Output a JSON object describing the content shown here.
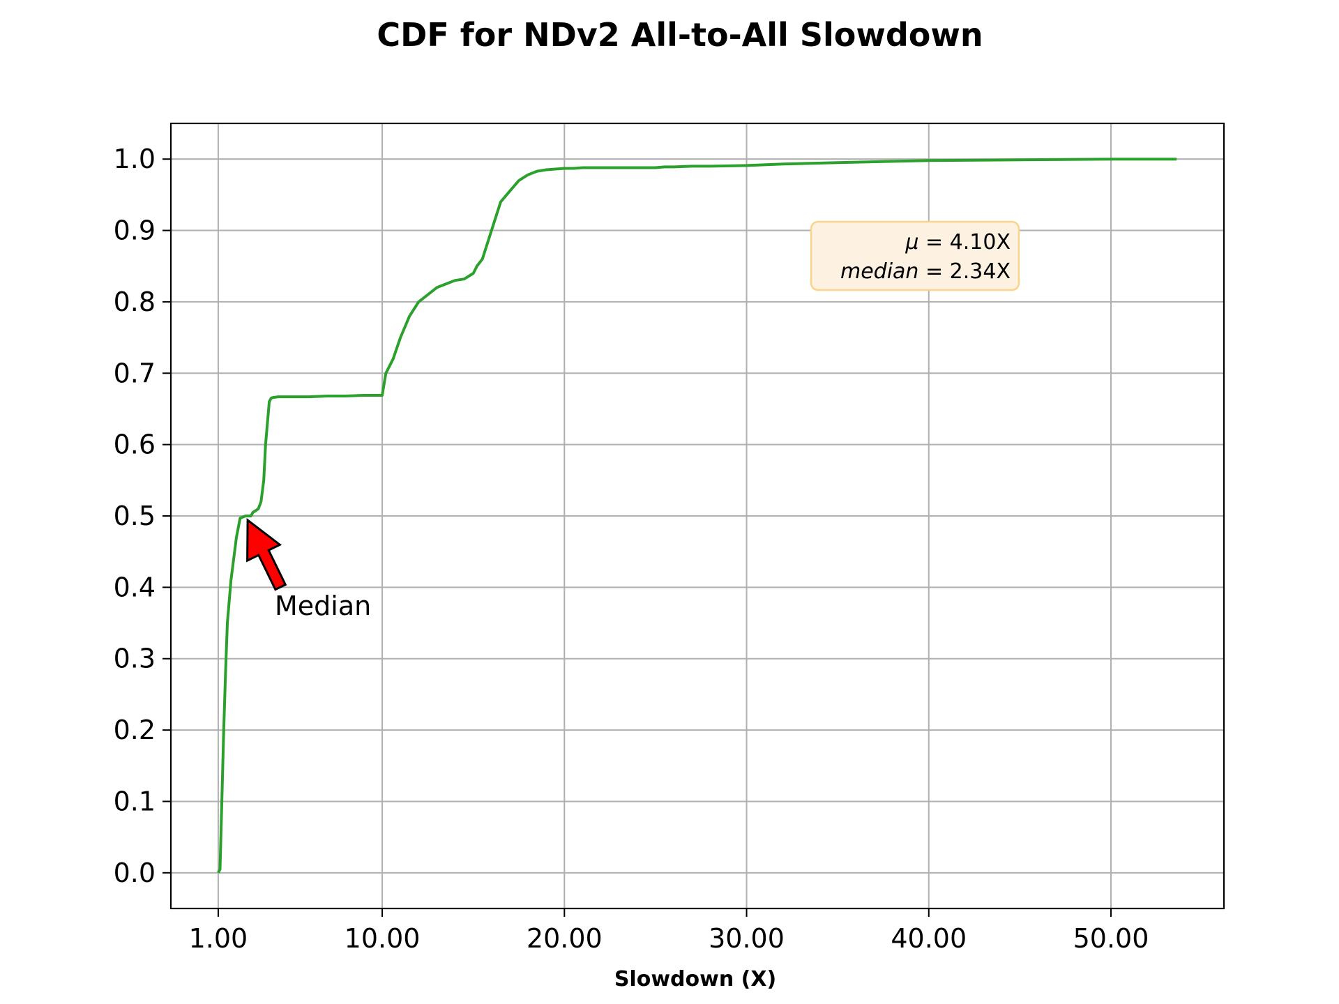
{
  "chart_data": {
    "type": "line",
    "title": "CDF for NDv2 All-to-All Slowdown",
    "xlabel": "Slowdown (X)",
    "ylabel": "",
    "xlim": [
      -1.6,
      56.2
    ],
    "ylim": [
      -0.05,
      1.05
    ],
    "xticks": [
      1,
      10,
      20,
      30,
      40,
      50
    ],
    "xtick_labels": [
      "1.00",
      "10.00",
      "20.00",
      "30.00",
      "40.00",
      "50.00"
    ],
    "yticks": [
      0.0,
      0.1,
      0.2,
      0.3,
      0.4,
      0.5,
      0.6,
      0.7,
      0.8,
      0.9,
      1.0
    ],
    "ytick_labels": [
      "0.0",
      "0.1",
      "0.2",
      "0.3",
      "0.4",
      "0.5",
      "0.6",
      "0.7",
      "0.8",
      "0.9",
      "1.0"
    ],
    "grid": true,
    "series": [
      {
        "color": "#2ca02c",
        "x": [
          1.0,
          1.1,
          1.2,
          1.3,
          1.4,
          1.5,
          1.7,
          2.0,
          2.2,
          2.5,
          2.8,
          2.9,
          3.2,
          3.35,
          3.5,
          3.6,
          3.8,
          3.9,
          4.0,
          4.3,
          5.0,
          6.0,
          7.0,
          8.0,
          9.0,
          9.5,
          10.0,
          10.2,
          10.6,
          11.0,
          11.5,
          12.0,
          12.5,
          13.0,
          13.5,
          14.0,
          14.5,
          15.0,
          15.2,
          15.5,
          16.0,
          16.5,
          17.0,
          17.5,
          18.0,
          18.5,
          19.0,
          19.5,
          20.0,
          20.5,
          21.0,
          21.5,
          22.5,
          23.5,
          24.5,
          25.0,
          25.5,
          26.0,
          27.0,
          28.0,
          30.0,
          32.0,
          35.0,
          40.0,
          45.0,
          50.0,
          53.6
        ],
        "y": [
          0.0,
          0.005,
          0.1,
          0.2,
          0.28,
          0.35,
          0.41,
          0.47,
          0.497,
          0.5,
          0.5,
          0.505,
          0.51,
          0.52,
          0.55,
          0.6,
          0.66,
          0.665,
          0.666,
          0.667,
          0.667,
          0.667,
          0.668,
          0.668,
          0.669,
          0.669,
          0.669,
          0.7,
          0.72,
          0.75,
          0.78,
          0.8,
          0.81,
          0.82,
          0.825,
          0.83,
          0.832,
          0.84,
          0.85,
          0.86,
          0.9,
          0.94,
          0.955,
          0.97,
          0.978,
          0.983,
          0.985,
          0.986,
          0.987,
          0.987,
          0.988,
          0.988,
          0.988,
          0.988,
          0.988,
          0.988,
          0.989,
          0.989,
          0.99,
          0.99,
          0.991,
          0.993,
          0.995,
          0.998,
          0.999,
          1.0,
          1.0
        ]
      }
    ],
    "stats_box": {
      "mu_symbol": "μ",
      "mu_value": " = 4.10X",
      "median_label": "median",
      "median_value": " = 2.34X",
      "fill": "#fdf1e2",
      "edge": "#fbd38a"
    },
    "annotation": {
      "text": "Median",
      "point": [
        2.5,
        0.5
      ],
      "arrow_color": "#ff0000"
    }
  }
}
